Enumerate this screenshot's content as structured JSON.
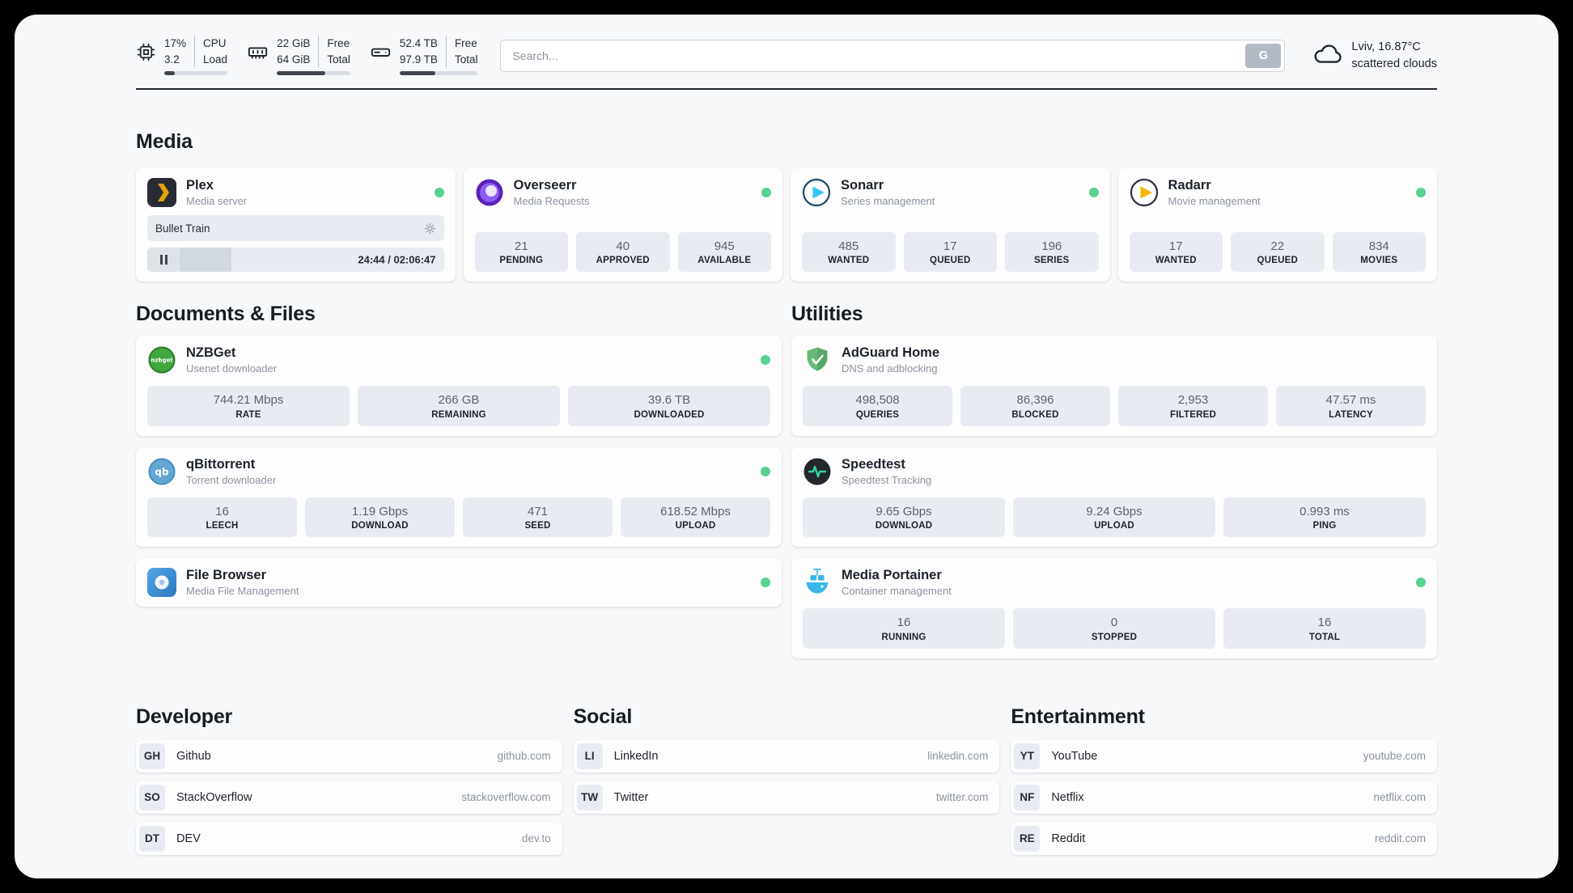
{
  "topbar": {
    "cpu": {
      "value_top": "17%",
      "value_bottom": "3.2",
      "label_top": "CPU",
      "label_bottom": "Load",
      "usage_percent": 17
    },
    "ram": {
      "value_top": "22 GiB",
      "value_bottom": "64 GiB",
      "label_top": "Free",
      "label_bottom": "Total",
      "usage_percent": 66
    },
    "disk": {
      "value_top": "52.4 TB",
      "value_bottom": "97.9 TB",
      "label_top": "Free",
      "label_bottom": "Total",
      "usage_percent": 46
    },
    "search": {
      "placeholder": "Search...",
      "engine_label": "G"
    },
    "weather": {
      "location": "Lviv, 16.87°C",
      "condition": "scattered clouds"
    }
  },
  "sections": {
    "media": "Media",
    "documents": "Documents & Files",
    "utilities": "Utilities",
    "developer": "Developer",
    "social": "Social",
    "entertainment": "Entertainment"
  },
  "apps": {
    "plex": {
      "name": "Plex",
      "subtitle": "Media server",
      "now_playing": "Bullet Train",
      "progress_time": "24:44 / 02:06:47",
      "progress_percent": 19.5
    },
    "overseerr": {
      "name": "Overseerr",
      "subtitle": "Media Requests",
      "stats": [
        {
          "value": "21",
          "label": "PENDING"
        },
        {
          "value": "40",
          "label": "APPROVED"
        },
        {
          "value": "945",
          "label": "AVAILABLE"
        }
      ]
    },
    "sonarr": {
      "name": "Sonarr",
      "subtitle": "Series management",
      "stats": [
        {
          "value": "485",
          "label": "WANTED"
        },
        {
          "value": "17",
          "label": "QUEUED"
        },
        {
          "value": "196",
          "label": "SERIES"
        }
      ]
    },
    "radarr": {
      "name": "Radarr",
      "subtitle": "Movie management",
      "stats": [
        {
          "value": "17",
          "label": "WANTED"
        },
        {
          "value": "22",
          "label": "QUEUED"
        },
        {
          "value": "834",
          "label": "MOVIES"
        }
      ]
    },
    "nzbget": {
      "name": "NZBGet",
      "subtitle": "Usenet downloader",
      "stats": [
        {
          "value": "744.21 Mbps",
          "label": "RATE"
        },
        {
          "value": "266 GB",
          "label": "REMAINING"
        },
        {
          "value": "39.6 TB",
          "label": "DOWNLOADED"
        }
      ]
    },
    "qbittorrent": {
      "name": "qBittorrent",
      "subtitle": "Torrent downloader",
      "stats": [
        {
          "value": "16",
          "label": "LEECH"
        },
        {
          "value": "1.19 Gbps",
          "label": "DOWNLOAD"
        },
        {
          "value": "471",
          "label": "SEED"
        },
        {
          "value": "618.52 Mbps",
          "label": "UPLOAD"
        }
      ]
    },
    "filebrowser": {
      "name": "File Browser",
      "subtitle": "Media File Management"
    },
    "adguard": {
      "name": "AdGuard Home",
      "subtitle": "DNS and adblocking",
      "stats": [
        {
          "value": "498,508",
          "label": "QUERIES"
        },
        {
          "value": "86,396",
          "label": "BLOCKED"
        },
        {
          "value": "2,953",
          "label": "FILTERED"
        },
        {
          "value": "47.57 ms",
          "label": "LATENCY"
        }
      ]
    },
    "speedtest": {
      "name": "Speedtest",
      "subtitle": "Speedtest Tracking",
      "stats": [
        {
          "value": "9.65 Gbps",
          "label": "DOWNLOAD"
        },
        {
          "value": "9.24 Gbps",
          "label": "UPLOAD"
        },
        {
          "value": "0.993 ms",
          "label": "PING"
        }
      ]
    },
    "portainer": {
      "name": "Media Portainer",
      "subtitle": "Container management",
      "stats": [
        {
          "value": "16",
          "label": "RUNNING"
        },
        {
          "value": "0",
          "label": "STOPPED"
        },
        {
          "value": "16",
          "label": "TOTAL"
        }
      ]
    }
  },
  "bookmarks": {
    "developer": [
      {
        "abbr": "GH",
        "name": "Github",
        "url": "github.com"
      },
      {
        "abbr": "SO",
        "name": "StackOverflow",
        "url": "stackoverflow.com"
      },
      {
        "abbr": "DT",
        "name": "DEV",
        "url": "dev.to"
      }
    ],
    "social": [
      {
        "abbr": "LI",
        "name": "LinkedIn",
        "url": "linkedin.com"
      },
      {
        "abbr": "TW",
        "name": "Twitter",
        "url": "twitter.com"
      }
    ],
    "entertainment": [
      {
        "abbr": "YT",
        "name": "YouTube",
        "url": "youtube.com"
      },
      {
        "abbr": "NF",
        "name": "Netflix",
        "url": "netflix.com"
      },
      {
        "abbr": "RE",
        "name": "Reddit",
        "url": "reddit.com"
      }
    ]
  },
  "colors": {
    "online_green": "#57d290",
    "accent_dark": "#41464d",
    "stat_bg": "#e8ecf2"
  }
}
